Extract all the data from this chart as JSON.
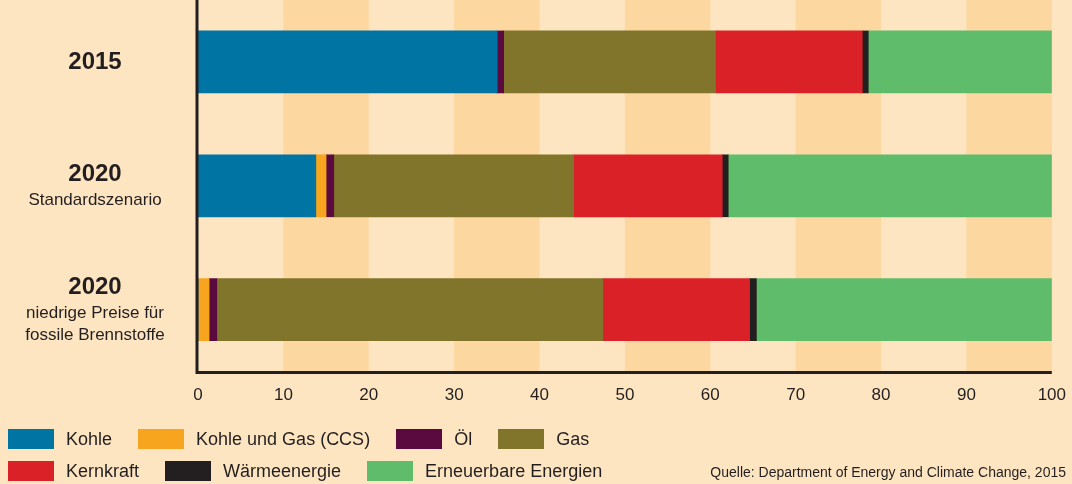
{
  "chart_data": {
    "type": "bar",
    "orientation": "horizontal",
    "stacked": true,
    "categories": [
      "2015",
      "2020\nStandardszenario",
      "2020\nniedrige Preise für\nfossile Brennstoffe"
    ],
    "series": [
      {
        "name": "Kohle",
        "color": "#0075a3",
        "values": [
          35.0,
          13.8,
          0
        ]
      },
      {
        "name": "Kohle und Gas (CCS)",
        "color": "#f7a51e",
        "values": [
          0,
          1.2,
          1.3
        ]
      },
      {
        "name": "Öl",
        "color": "#5a0a3f",
        "values": [
          0.8,
          0.9,
          0.9
        ]
      },
      {
        "name": "Gas",
        "color": "#80752a",
        "values": [
          24.8,
          28.1,
          45.2
        ]
      },
      {
        "name": "Kernkraft",
        "color": "#db2128",
        "values": [
          17.2,
          17.4,
          17.2
        ]
      },
      {
        "name": "Wärmeenergie",
        "color": "#231f20",
        "values": [
          0.7,
          0.7,
          0.8
        ]
      },
      {
        "name": "Erneuerbare Energien",
        "color": "#5ebc6b",
        "values": [
          21.5,
          37.9,
          34.6
        ]
      }
    ],
    "xlim": [
      0,
      100
    ],
    "xticks": [
      0,
      10,
      20,
      30,
      40,
      50,
      60,
      70,
      80,
      90,
      100
    ],
    "bands": [
      {
        "axis": "x",
        "from": 10,
        "to": 20,
        "color": "#fdd7a0"
      },
      {
        "axis": "x",
        "from": 30,
        "to": 40,
        "color": "#fdd7a0"
      },
      {
        "axis": "x",
        "from": 50,
        "to": 60,
        "color": "#fdd7a0"
      },
      {
        "axis": "x",
        "from": 70,
        "to": 80,
        "color": "#fdd7a0"
      },
      {
        "axis": "x",
        "from": 90,
        "to": 100,
        "color": "#fdd7a0"
      }
    ],
    "legend": "bottom",
    "annotations": [
      "Quelle: Department of Energy and Climate Change, 2015"
    ]
  }
}
